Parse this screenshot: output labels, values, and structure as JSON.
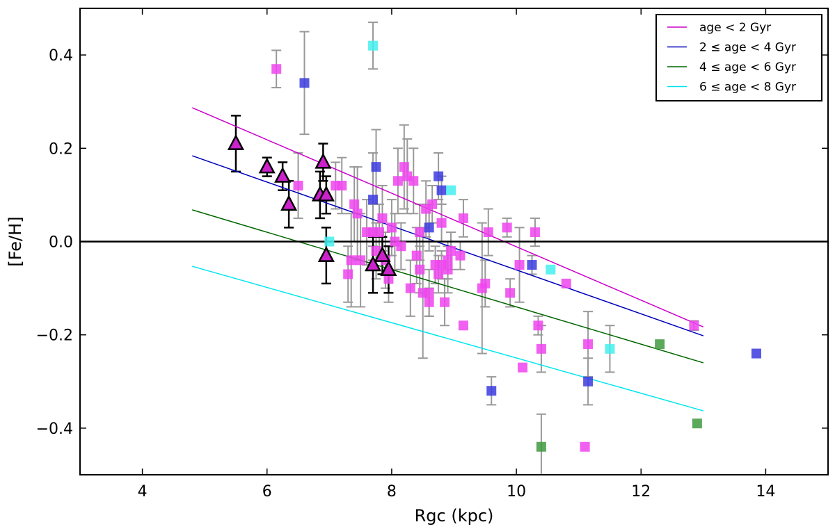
{
  "chart_data": {
    "type": "scatter",
    "title": "",
    "xlabel": "Rgc (kpc)",
    "ylabel": "[Fe/H]",
    "xlim": [
      3,
      15
    ],
    "ylim": [
      -0.5,
      0.5
    ],
    "x_ticks": [
      4,
      6,
      8,
      10,
      12,
      14
    ],
    "y_ticks": [
      -0.4,
      -0.2,
      0.0,
      0.2,
      0.4
    ],
    "y_tick_labels": [
      "−0.4",
      "−0.2",
      "0.0",
      "0.2",
      "0.4"
    ],
    "colors": {
      "magenta": "#ee44ee",
      "blue": "#3b3bdf",
      "green": "#3f9a3f",
      "cyan": "#44eeee",
      "magenta_line": "#cc00cc",
      "blue_line": "#0000bb",
      "green_line": "#006600",
      "cyan_line": "#00e5ee",
      "errorbar": "#999999",
      "triangle_fill": "#cc22cc"
    },
    "reference_line": {
      "y": 0.0
    },
    "legend": {
      "location": "upper-right",
      "entries": [
        {
          "label": "age < 2 Gyr",
          "color_key": "magenta_line"
        },
        {
          "label": "2 ≤ age < 4 Gyr",
          "color_key": "blue_line"
        },
        {
          "label": "4 ≤ age < 6 Gyr",
          "color_key": "green_line"
        },
        {
          "label": "6 ≤ age < 8 Gyr",
          "color_key": "cyan_line"
        }
      ]
    },
    "fit_lines": [
      {
        "name": "age < 2 Gyr",
        "color_key": "magenta_line",
        "x": [
          4.8,
          13.0
        ],
        "y": [
          0.287,
          -0.183
        ]
      },
      {
        "name": "2 ≤ age < 4 Gyr",
        "color_key": "blue_line",
        "x": [
          4.8,
          13.0
        ],
        "y": [
          0.184,
          -0.202
        ]
      },
      {
        "name": "4 ≤ age < 6 Gyr",
        "color_key": "green_line",
        "x": [
          4.8,
          13.0
        ],
        "y": [
          0.068,
          -0.26
        ]
      },
      {
        "name": "6 ≤ age < 8 Gyr",
        "color_key": "cyan_line",
        "x": [
          4.8,
          13.0
        ],
        "y": [
          -0.053,
          -0.363
        ]
      }
    ],
    "series": [
      {
        "name": "age < 2 Gyr",
        "marker": "square",
        "color_key": "magenta",
        "points": [
          [
            6.15,
            0.37,
            0.04
          ],
          [
            6.5,
            0.12,
            0.07
          ],
          [
            7.1,
            0.12,
            0.05
          ],
          [
            7.2,
            0.12,
            0.06
          ],
          [
            7.3,
            -0.07,
            0.06
          ],
          [
            7.35,
            -0.04,
            0.1
          ],
          [
            7.4,
            0.08,
            0.08
          ],
          [
            7.45,
            0.06,
            0.1
          ],
          [
            7.5,
            -0.04,
            0.1
          ],
          [
            7.6,
            0.02,
            0.07
          ],
          [
            7.7,
            0.02,
            0.06
          ],
          [
            7.75,
            -0.02,
            0.06
          ],
          [
            7.8,
            0.02,
            0.06
          ],
          [
            7.85,
            0.05,
            0.07
          ],
          [
            7.9,
            -0.04,
            0.06
          ],
          [
            7.95,
            -0.08,
            0.05
          ],
          [
            8.0,
            0.03,
            0.06
          ],
          [
            8.05,
            0.0,
            0.06
          ],
          [
            8.1,
            0.13,
            0.07
          ],
          [
            8.15,
            -0.01,
            0.05
          ],
          [
            8.2,
            0.16,
            0.09
          ],
          [
            8.25,
            0.14,
            0.08
          ],
          [
            8.3,
            -0.1,
            0.06
          ],
          [
            8.35,
            0.13,
            0.07
          ],
          [
            8.4,
            -0.03,
            0.06
          ],
          [
            8.45,
            -0.06,
            0.05
          ],
          [
            8.45,
            0.02,
            0.06
          ],
          [
            8.5,
            -0.11,
            0.14
          ],
          [
            8.55,
            0.07,
            0.06
          ],
          [
            8.6,
            -0.11,
            0.05
          ],
          [
            8.6,
            -0.13,
            0.03
          ],
          [
            8.65,
            0.08,
            0.04
          ],
          [
            8.7,
            -0.05,
            0.04
          ],
          [
            8.75,
            -0.07,
            0.04
          ],
          [
            8.8,
            -0.05,
            0.03
          ],
          [
            8.8,
            0.04,
            0.04
          ],
          [
            8.85,
            -0.13,
            0.05
          ],
          [
            8.9,
            -0.06,
            0.05
          ],
          [
            8.9,
            -0.04,
            0.04
          ],
          [
            8.95,
            -0.02,
            0.04
          ],
          [
            9.1,
            -0.03,
            0.03
          ],
          [
            9.15,
            0.05,
            0.04
          ],
          [
            9.15,
            -0.18,
            0.0
          ],
          [
            9.45,
            -0.1,
            0.14
          ],
          [
            9.5,
            -0.09,
            0.05
          ],
          [
            9.55,
            0.02,
            0.05
          ],
          [
            9.85,
            0.03,
            0.02
          ],
          [
            9.9,
            -0.11,
            0.03
          ],
          [
            10.05,
            -0.05,
            0.08
          ],
          [
            10.1,
            -0.27,
            0.0
          ],
          [
            10.3,
            0.02,
            0.03
          ],
          [
            10.35,
            -0.18,
            0.02
          ],
          [
            10.4,
            -0.23,
            0.05
          ],
          [
            10.8,
            -0.09,
            0.0
          ],
          [
            11.1,
            -0.44,
            0.0
          ],
          [
            11.15,
            -0.22,
            0.07
          ],
          [
            12.85,
            -0.18,
            0.01
          ]
        ]
      },
      {
        "name": "2 ≤ age < 4 Gyr",
        "marker": "square",
        "color_key": "blue",
        "points": [
          [
            6.6,
            0.34,
            0.11
          ],
          [
            7.7,
            0.09,
            0.1
          ],
          [
            7.75,
            0.16,
            0.08
          ],
          [
            8.6,
            0.03,
            0.05
          ],
          [
            8.75,
            0.14,
            0.05
          ],
          [
            8.8,
            0.11,
            0.03
          ],
          [
            9.6,
            -0.32,
            0.03
          ],
          [
            10.25,
            -0.05,
            0.02
          ],
          [
            11.15,
            -0.3,
            0.05
          ],
          [
            13.85,
            -0.24,
            0.0
          ]
        ]
      },
      {
        "name": "4 ≤ age < 6 Gyr",
        "marker": "square",
        "color_key": "green",
        "points": [
          [
            10.4,
            -0.44,
            0.07
          ],
          [
            12.3,
            -0.22,
            0.0
          ],
          [
            12.9,
            -0.39,
            0.0
          ]
        ]
      },
      {
        "name": "6 ≤ age < 8 Gyr",
        "marker": "square",
        "color_key": "cyan",
        "points": [
          [
            7.0,
            0.0,
            0.0
          ],
          [
            7.7,
            0.42,
            0.05
          ],
          [
            8.95,
            0.11,
            0.0
          ],
          [
            10.55,
            -0.06,
            0.0
          ],
          [
            11.5,
            -0.23,
            0.05
          ]
        ]
      },
      {
        "name": "cepheid-like triangles",
        "marker": "triangle",
        "color_key": "triangle_fill",
        "points": [
          [
            5.5,
            0.21,
            0.06
          ],
          [
            6.0,
            0.16,
            0.02
          ],
          [
            6.25,
            0.14,
            0.03
          ],
          [
            6.35,
            0.08,
            0.05
          ],
          [
            6.85,
            0.1,
            0.05
          ],
          [
            6.9,
            0.17,
            0.04
          ],
          [
            6.95,
            0.1,
            0.04
          ],
          [
            6.95,
            -0.03,
            0.06
          ],
          [
            7.7,
            -0.05,
            0.06
          ],
          [
            7.85,
            -0.03,
            0.04
          ],
          [
            7.95,
            -0.06,
            0.05
          ]
        ]
      }
    ]
  }
}
